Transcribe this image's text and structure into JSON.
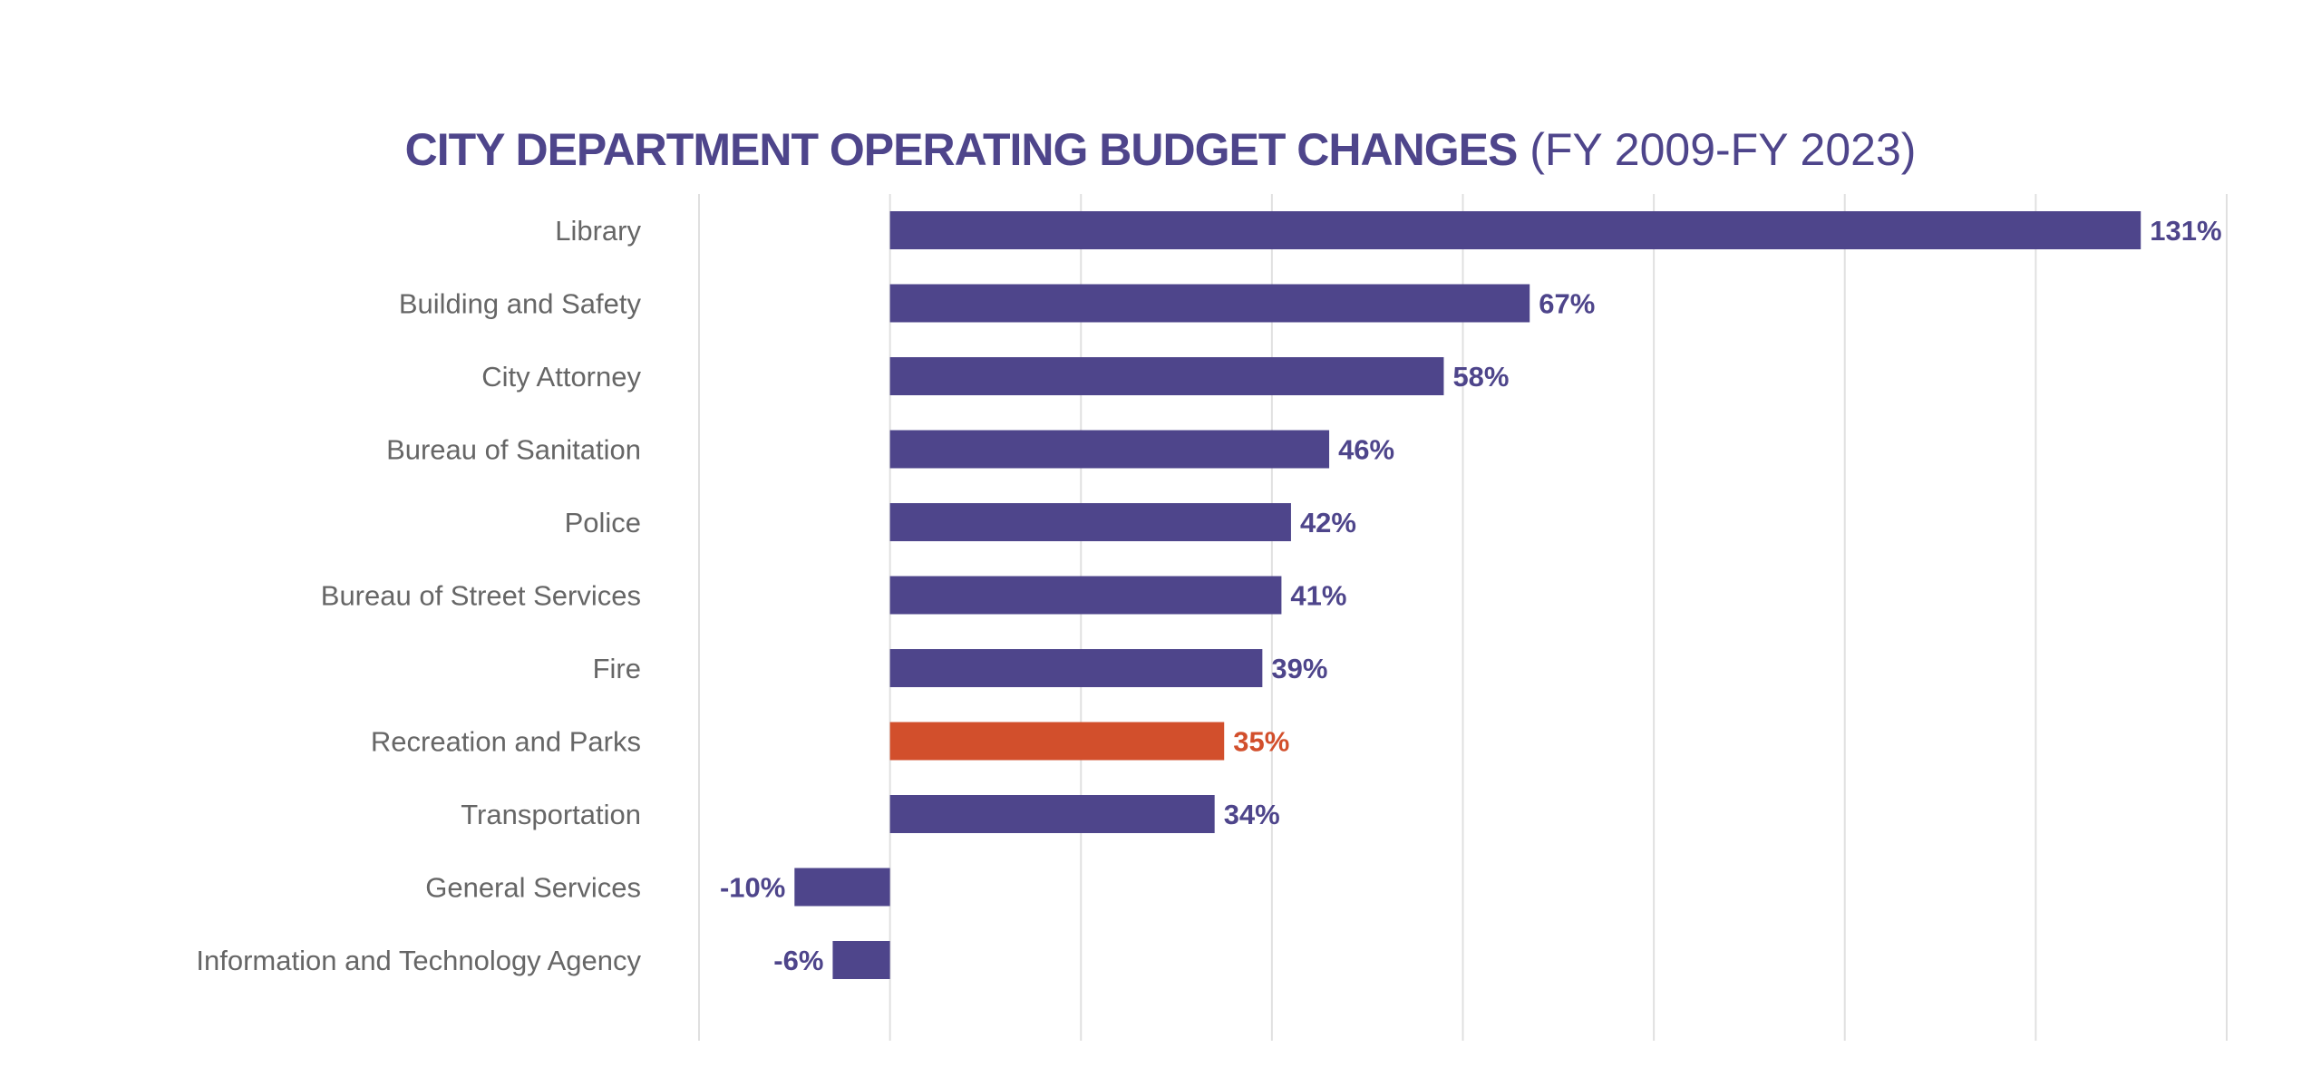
{
  "chart_data": {
    "type": "bar",
    "orientation": "horizontal",
    "title": "CITY DEPARTMENT OPERATING BUDGET CHANGES",
    "subtitle": "(FY 2009-FY 2023)",
    "categories": [
      "Library",
      "Building and Safety",
      "City Attorney",
      "Bureau of Sanitation",
      "Police",
      "Bureau of Street Services",
      "Fire",
      "Recreation and Parks",
      "Transportation",
      "General Services",
      "Information and Technology Agency"
    ],
    "values": [
      131,
      67,
      58,
      46,
      42,
      41,
      39,
      35,
      34,
      -10,
      -6
    ],
    "data_labels": [
      "131%",
      "67%",
      "58%",
      "46%",
      "42%",
      "41%",
      "39%",
      "35%",
      "34%",
      "-10%",
      "-6%"
    ],
    "highlight": "Recreation and Parks",
    "xlim": [
      -20,
      140
    ],
    "grid_step": 20,
    "grid": true,
    "xlabel": "",
    "ylabel": "",
    "colors": {
      "default": "#4e458b",
      "highlight": "#d24f2c",
      "label": "#666666",
      "grid": "#e0e0e0"
    }
  }
}
